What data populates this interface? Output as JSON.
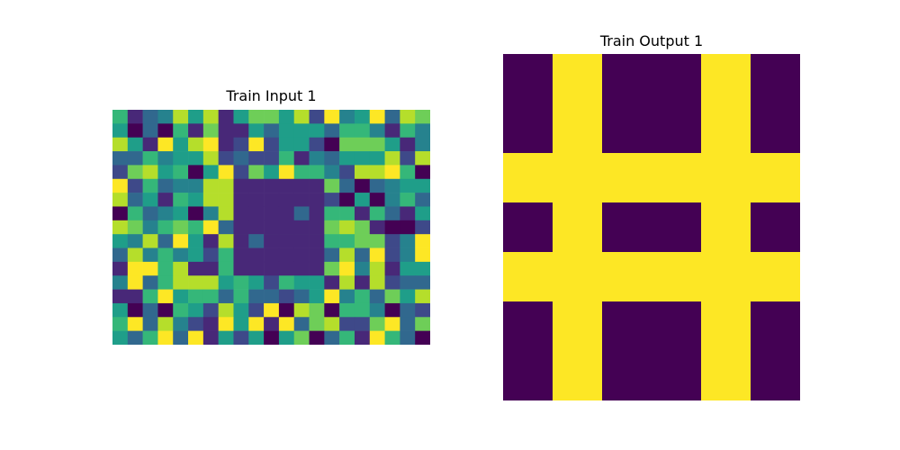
{
  "palette": {
    "0": "#440154",
    "1": "#482878",
    "2": "#3e4989",
    "3": "#31688e",
    "4": "#26828e",
    "5": "#1f9e89",
    "6": "#35b779",
    "7": "#6ece58",
    "8": "#b5de2b",
    "9": "#fde725"
  },
  "panels": [
    {
      "title": "Train Input 1",
      "grid": [
        [
          6,
          1,
          3,
          4,
          8,
          5,
          8,
          1,
          5,
          7,
          7,
          5,
          8,
          2,
          9,
          4,
          5,
          9,
          3,
          8,
          7
        ],
        [
          5,
          0,
          3,
          0,
          6,
          1,
          7,
          1,
          1,
          5,
          3,
          5,
          5,
          5,
          3,
          6,
          6,
          4,
          1,
          6,
          4
        ],
        [
          8,
          5,
          1,
          9,
          5,
          8,
          9,
          1,
          2,
          9,
          2,
          5,
          5,
          2,
          0,
          7,
          7,
          7,
          5,
          1,
          4
        ],
        [
          3,
          3,
          6,
          4,
          5,
          5,
          8,
          2,
          3,
          2,
          2,
          6,
          1,
          4,
          3,
          5,
          5,
          5,
          8,
          2,
          8
        ],
        [
          2,
          7,
          8,
          5,
          6,
          0,
          5,
          9,
          2,
          7,
          5,
          9,
          6,
          6,
          4,
          2,
          8,
          8,
          9,
          6,
          0
        ],
        [
          9,
          2,
          6,
          3,
          4,
          4,
          8,
          8,
          1,
          1,
          1,
          1,
          1,
          1,
          7,
          3,
          0,
          3,
          4,
          5,
          5
        ],
        [
          8,
          3,
          5,
          1,
          6,
          5,
          8,
          8,
          1,
          1,
          1,
          1,
          1,
          1,
          2,
          0,
          5,
          0,
          4,
          6,
          3
        ],
        [
          0,
          6,
          3,
          4,
          5,
          0,
          4,
          8,
          1,
          1,
          1,
          1,
          3,
          1,
          6,
          6,
          1,
          6,
          3,
          1,
          5
        ],
        [
          8,
          7,
          4,
          6,
          7,
          6,
          9,
          3,
          1,
          1,
          1,
          1,
          1,
          1,
          7,
          8,
          7,
          1,
          0,
          0,
          2
        ],
        [
          5,
          4,
          8,
          3,
          9,
          5,
          1,
          8,
          1,
          3,
          1,
          1,
          1,
          1,
          6,
          6,
          7,
          7,
          2,
          4,
          9
        ],
        [
          3,
          8,
          4,
          6,
          4,
          5,
          2,
          6,
          1,
          1,
          1,
          1,
          1,
          1,
          3,
          8,
          3,
          9,
          2,
          4,
          9
        ],
        [
          1,
          9,
          9,
          6,
          8,
          1,
          1,
          6,
          1,
          1,
          1,
          1,
          1,
          1,
          7,
          9,
          4,
          8,
          1,
          5,
          5
        ],
        [
          4,
          9,
          3,
          6,
          8,
          8,
          8,
          5,
          6,
          5,
          2,
          6,
          5,
          5,
          1,
          8,
          1,
          8,
          2,
          3,
          3
        ],
        [
          1,
          1,
          6,
          9,
          5,
          6,
          6,
          3,
          6,
          3,
          3,
          2,
          3,
          5,
          9,
          4,
          6,
          3,
          7,
          5,
          8
        ],
        [
          5,
          0,
          3,
          0,
          6,
          5,
          2,
          8,
          5,
          2,
          9,
          0,
          8,
          7,
          0,
          6,
          6,
          4,
          0,
          3,
          2
        ],
        [
          6,
          9,
          3,
          8,
          4,
          2,
          1,
          9,
          5,
          9,
          1,
          9,
          3,
          7,
          8,
          2,
          2,
          7,
          9,
          3,
          7
        ],
        [
          5,
          3,
          6,
          9,
          3,
          9,
          1,
          5,
          2,
          5,
          0,
          5,
          7,
          0,
          3,
          6,
          1,
          9,
          6,
          3,
          0
        ]
      ]
    },
    {
      "title": "Train Output 1",
      "grid": [
        [
          0,
          9,
          0,
          0,
          9,
          0
        ],
        [
          0,
          9,
          0,
          0,
          9,
          0
        ],
        [
          9,
          9,
          9,
          9,
          9,
          9
        ],
        [
          0,
          9,
          0,
          0,
          9,
          0
        ],
        [
          9,
          9,
          9,
          9,
          9,
          9
        ],
        [
          0,
          9,
          0,
          0,
          9,
          0
        ],
        [
          0,
          9,
          0,
          0,
          9,
          0
        ]
      ]
    }
  ]
}
